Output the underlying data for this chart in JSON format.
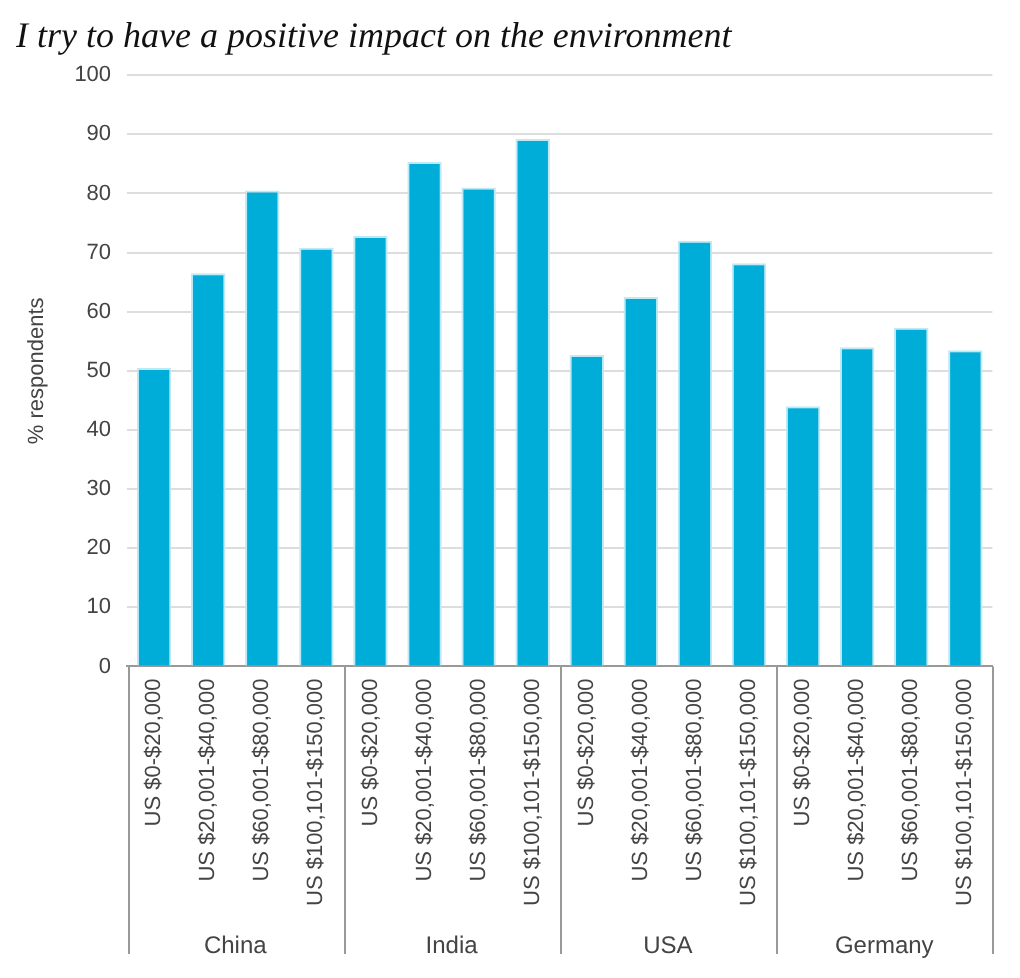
{
  "chart_data": {
    "type": "bar",
    "title": "I try to have a positive impact on the environment",
    "ylabel": "% respondents",
    "categories": [
      "US $0-$20,000",
      "US $20,001-$40,000",
      "US $60,001-$80,000",
      "US $100,101-$150,000",
      "US $0-$20,000",
      "US $20,001-$40,000",
      "US $60,001-$80,000",
      "US $100,101-$150,000",
      "US $0-$20,000",
      "US $20,001-$40,000",
      "US $60,001-$80,000",
      "US $100,101-$150,000",
      "US $0-$20,000",
      "US $20,001-$40,000",
      "US $60,001-$80,000",
      "US $100,101-$150,000"
    ],
    "values": [
      50.5,
      66.5,
      80.5,
      70.8,
      72.8,
      85.3,
      81,
      89.2,
      52.7,
      62.5,
      72,
      68.2,
      44,
      54,
      57.3,
      53.5
    ],
    "color": "#00acd8",
    "ylim": [
      0,
      100
    ],
    "yticks": [
      0,
      10,
      20,
      30,
      40,
      50,
      60,
      70,
      80,
      90,
      100
    ],
    "grid": "y",
    "annotations": [
      "China",
      "India",
      "USA",
      "Germany"
    ]
  }
}
